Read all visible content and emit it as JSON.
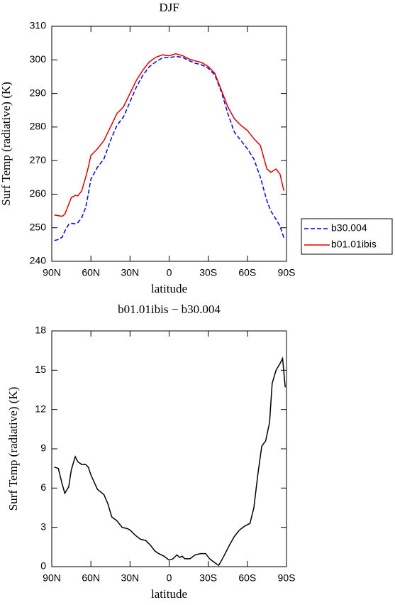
{
  "chart_data": [
    {
      "type": "line",
      "title": "DJF",
      "x_label": "latitude",
      "y_label": "Surf Temp (radiative) (K)",
      "x": [
        88,
        85,
        82,
        80,
        77,
        75,
        72,
        70,
        67,
        64,
        62,
        60,
        55,
        50,
        45,
        40,
        35,
        30,
        25,
        20,
        15,
        10,
        5,
        0,
        -5,
        -10,
        -15,
        -20,
        -25,
        -30,
        -35,
        -40,
        -45,
        -50,
        -55,
        -60,
        -65,
        -70,
        -75,
        -78,
        -82,
        -85,
        -88
      ],
      "series": [
        {
          "name": "b30.004",
          "color": "#0000dd",
          "dashed": true,
          "values": [
            246.2,
            246.5,
            247.2,
            249,
            251,
            251.3,
            251.2,
            251.5,
            253,
            256,
            260,
            264.5,
            268,
            270.5,
            276,
            280.5,
            283,
            287.5,
            292,
            295.5,
            298,
            299.5,
            300.6,
            300.7,
            301,
            300.8,
            299.8,
            299,
            298.5,
            297.5,
            295.5,
            290.5,
            284,
            278.5,
            276,
            273.5,
            270.5,
            265,
            258,
            255,
            252.5,
            250.5,
            247
          ]
        },
        {
          "name": "b01.01ibis",
          "color": "#dd0000",
          "dashed": false,
          "values": [
            253.8,
            253.6,
            253.4,
            254,
            257,
            259,
            259.6,
            259.5,
            261,
            265,
            268,
            271.5,
            273.5,
            276,
            280,
            284,
            286,
            290,
            294,
            297,
            299.5,
            300.8,
            301.5,
            301.2,
            301.8,
            301.3,
            300.3,
            299.7,
            299.2,
            298,
            296,
            291,
            286,
            282.5,
            280.5,
            279,
            276.5,
            274.5,
            267.5,
            266.5,
            267.5,
            266,
            261
          ]
        }
      ],
      "xlim": [
        90,
        -90
      ],
      "xticks": [
        {
          "value": 90,
          "label": "90N"
        },
        {
          "value": 60,
          "label": "60N"
        },
        {
          "value": 30,
          "label": "30N"
        },
        0,
        {
          "value": -30,
          "label": "30S"
        },
        {
          "value": -60,
          "label": "60S"
        },
        {
          "value": -90,
          "label": "90S"
        }
      ],
      "ylim": [
        240,
        310
      ],
      "yticks": [
        240,
        250,
        260,
        270,
        280,
        290,
        300,
        310
      ],
      "legend": "outside-right"
    },
    {
      "type": "line",
      "title": "b01.01ibis − b30.004",
      "x_label": "latitude",
      "y_label": "Surf Temp (radiative) (K)",
      "x": [
        88,
        85,
        82,
        80,
        77,
        75,
        72,
        70,
        67,
        64,
        62,
        60,
        55,
        50,
        47,
        44,
        40,
        36,
        32,
        30,
        26,
        22,
        18,
        14,
        11,
        8,
        4,
        0,
        -3,
        -6,
        -8,
        -10,
        -12,
        -16,
        -20,
        -24,
        -28,
        -31,
        -35,
        -38,
        -42,
        -46,
        -50,
        -54,
        -58,
        -62,
        -65,
        -68,
        -71,
        -74,
        -77,
        -79,
        -82,
        -85,
        -87,
        -89
      ],
      "series": [
        {
          "color": "#000000",
          "dashed": false,
          "values": [
            7.6,
            7.5,
            6.3,
            5.6,
            6.1,
            7.4,
            8.4,
            8.0,
            7.8,
            7.8,
            7.6,
            7.0,
            5.9,
            5.5,
            4.8,
            3.8,
            3.5,
            3.0,
            2.9,
            2.8,
            2.4,
            2.1,
            2.0,
            1.6,
            1.2,
            1.0,
            0.8,
            0.5,
            0.6,
            0.9,
            0.7,
            0.8,
            0.6,
            0.6,
            0.9,
            1.0,
            1.0,
            0.6,
            0.3,
            0.1,
            0.8,
            1.6,
            2.3,
            2.8,
            3.1,
            3.3,
            4.5,
            7.0,
            9.2,
            9.6,
            11.0,
            14.0,
            15.0,
            15.5,
            15.9,
            13.7
          ]
        }
      ],
      "xlim": [
        90,
        -90
      ],
      "xticks": [
        {
          "value": 90,
          "label": "90N"
        },
        {
          "value": 60,
          "label": "60N"
        },
        {
          "value": 30,
          "label": "30N"
        },
        0,
        {
          "value": -30,
          "label": "30S"
        },
        {
          "value": -60,
          "label": "60S"
        },
        {
          "value": -90,
          "label": "90S"
        }
      ],
      "ylim": [
        0,
        18
      ],
      "yticks": [
        0,
        3,
        6,
        9,
        12,
        15,
        18
      ]
    }
  ]
}
